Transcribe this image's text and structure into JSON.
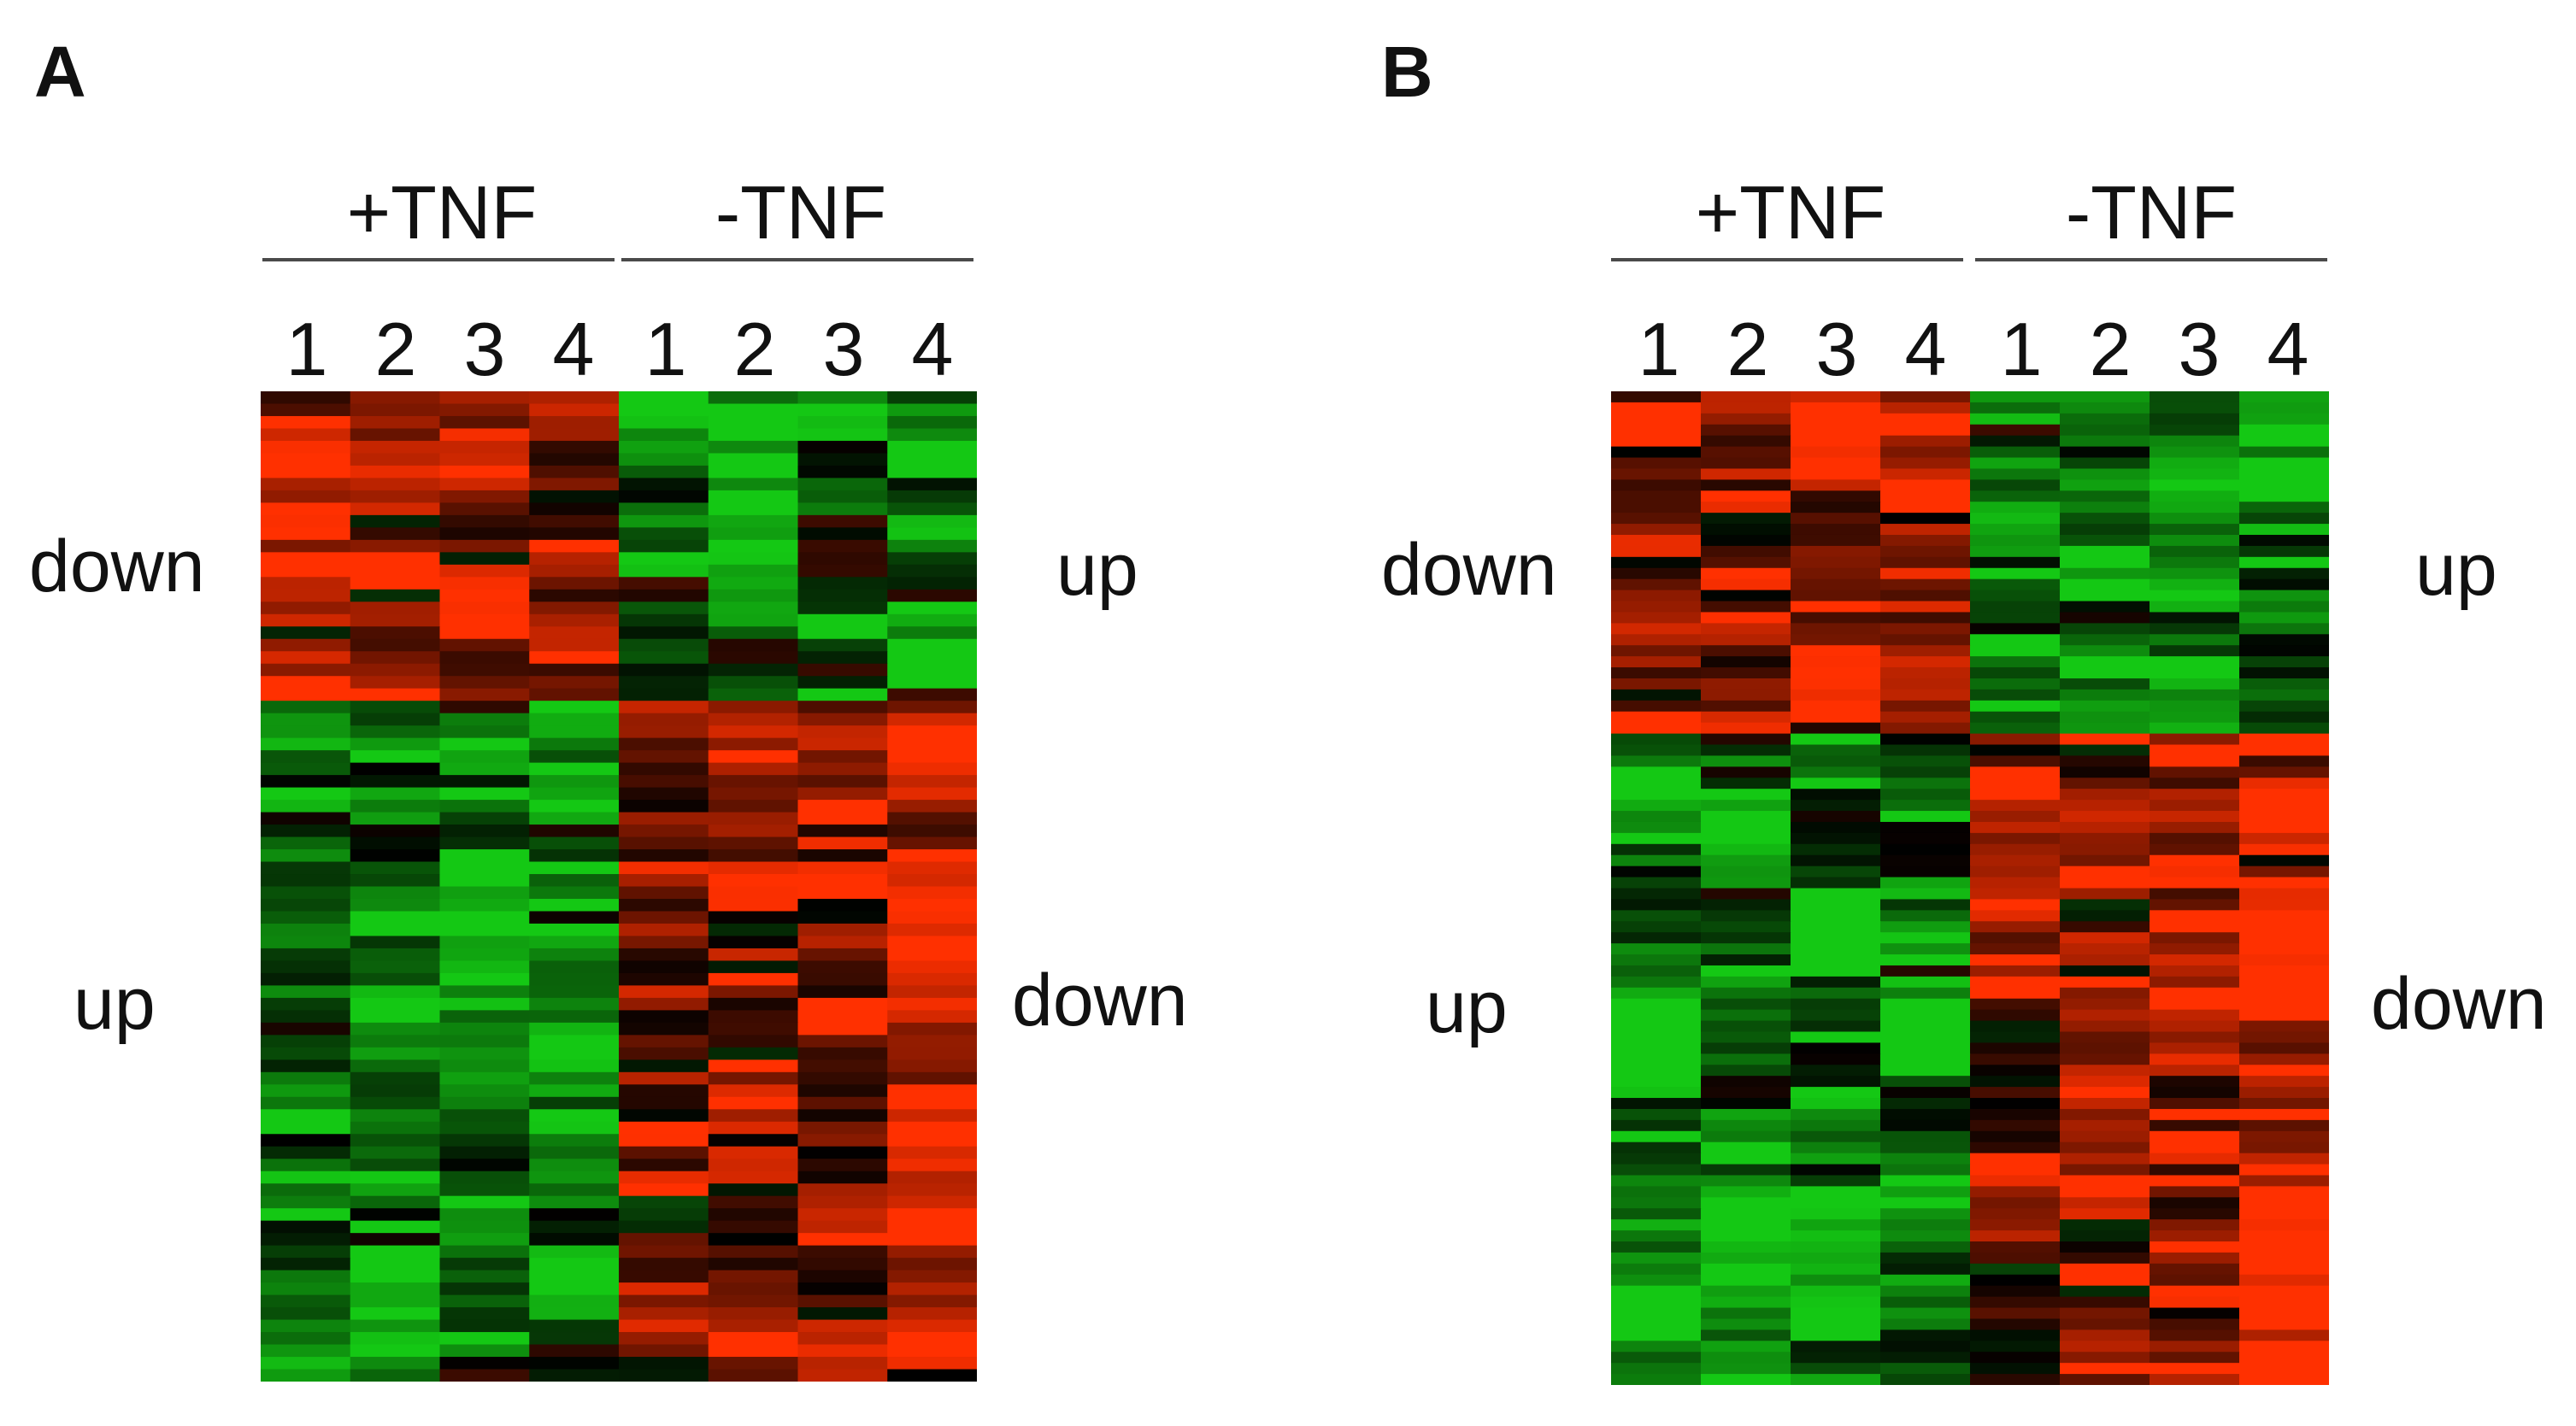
{
  "chart_data": [
    {
      "type": "heatmap",
      "panel_label": "A",
      "groups": [
        {
          "label": "+TNF",
          "columns": [
            "1",
            "2",
            "3",
            "4"
          ]
        },
        {
          "label": "-TNF",
          "columns": [
            "1",
            "2",
            "3",
            "4"
          ]
        }
      ],
      "row_blocks": [
        {
          "left_label": "down",
          "right_label": "up",
          "row_fraction": 0.31
        },
        {
          "left_label": "up",
          "right_label": "down",
          "row_fraction": 0.69
        }
      ],
      "colormap": {
        "low": "#14c814",
        "mid": "#000000",
        "high": "#ff3000"
      },
      "value_range": [
        -1,
        1
      ],
      "rows": 80,
      "seed": 17,
      "block_means": [
        [
          0.6,
          0.55,
          0.55,
          0.6,
          -0.5,
          -0.55,
          -0.55,
          -0.5
        ],
        [
          -0.6,
          -0.6,
          -0.5,
          -0.55,
          0.35,
          0.5,
          0.6,
          0.65
        ]
      ]
    },
    {
      "type": "heatmap",
      "panel_label": "B",
      "groups": [
        {
          "label": "+TNF",
          "columns": [
            "1",
            "2",
            "3",
            "4"
          ]
        },
        {
          "label": "-TNF",
          "columns": [
            "1",
            "2",
            "3",
            "4"
          ]
        }
      ],
      "row_blocks": [
        {
          "left_label": "down",
          "right_label": "up",
          "row_fraction": 0.345
        },
        {
          "left_label": "up",
          "right_label": "down",
          "row_fraction": 0.655
        }
      ],
      "colormap": {
        "low": "#14c814",
        "mid": "#000000",
        "high": "#ff3000"
      },
      "value_range": [
        -1,
        1
      ],
      "rows": 90,
      "seed": 41,
      "block_means": [
        [
          0.6,
          0.55,
          0.7,
          0.7,
          -0.55,
          -0.6,
          -0.65,
          -0.6
        ],
        [
          -0.65,
          -0.65,
          -0.7,
          -0.65,
          0.45,
          0.55,
          0.7,
          0.75
        ]
      ]
    }
  ]
}
